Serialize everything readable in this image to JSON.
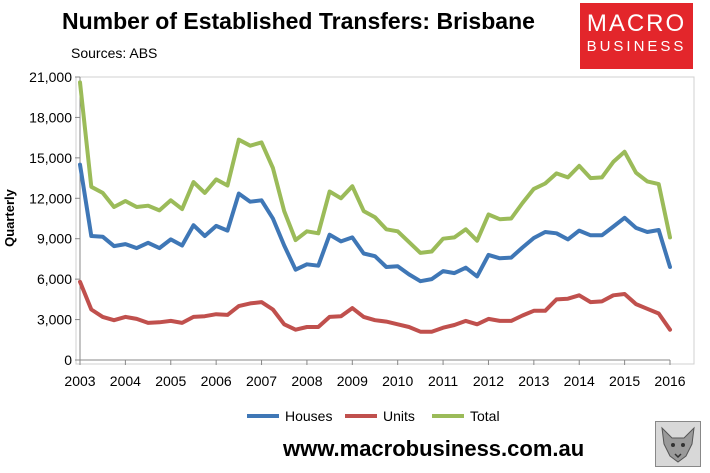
{
  "header": {
    "title": "Number of Established Transfers: Brisbane",
    "source": "Sources: ABS"
  },
  "logo": {
    "line1": "MACRO",
    "line2": "BUSINESS"
  },
  "footer": {
    "website": "www.macrobusiness.com.au",
    "mascot_icon": "wolf-icon"
  },
  "colors": {
    "houses": "#3f77b6",
    "units": "#c0504d",
    "total": "#9bbb59"
  },
  "chart_data": {
    "type": "line",
    "title": "Number of Established Transfers: Brisbane",
    "ylabel": "Quarterly",
    "xlabel": "",
    "xlim": [
      2003,
      2016
    ],
    "ylim": [
      0,
      21000
    ],
    "x_ticks": [
      "2003",
      "2004",
      "2005",
      "2006",
      "2007",
      "2008",
      "2009",
      "2010",
      "2011",
      "2012",
      "2013",
      "2014",
      "2015",
      "2016"
    ],
    "y_ticks": [
      "0",
      "3,000",
      "6,000",
      "9,000",
      "12,000",
      "15,000",
      "18,000",
      "21,000"
    ],
    "grid": false,
    "legend": "bottom",
    "x": [
      2003.0,
      2003.25,
      2003.5,
      2003.75,
      2004.0,
      2004.25,
      2004.5,
      2004.75,
      2005.0,
      2005.25,
      2005.5,
      2005.75,
      2006.0,
      2006.25,
      2006.5,
      2006.75,
      2007.0,
      2007.25,
      2007.5,
      2007.75,
      2008.0,
      2008.25,
      2008.5,
      2008.75,
      2009.0,
      2009.25,
      2009.5,
      2009.75,
      2010.0,
      2010.25,
      2010.5,
      2010.75,
      2011.0,
      2011.25,
      2011.5,
      2011.75,
      2012.0,
      2012.25,
      2012.5,
      2012.75,
      2013.0,
      2013.25,
      2013.5,
      2013.75,
      2014.0,
      2014.25,
      2014.5,
      2014.75,
      2015.0,
      2015.25,
      2015.5,
      2015.75,
      2016.0
    ],
    "series": [
      {
        "name": "Houses",
        "values": [
          14500,
          9200,
          9150,
          8450,
          8600,
          8300,
          8700,
          8300,
          8950,
          8500,
          10000,
          9200,
          9950,
          9600,
          12350,
          11750,
          11850,
          10500,
          8500,
          6700,
          7100,
          7000,
          9300,
          8800,
          9100,
          7900,
          7700,
          6900,
          6950,
          6350,
          5850,
          6000,
          6600,
          6450,
          6850,
          6200,
          7800,
          7550,
          7600,
          8350,
          9050,
          9500,
          9400,
          8950,
          9600,
          9250,
          9250,
          9900,
          10550,
          9800,
          9500,
          9650,
          6900
        ]
      },
      {
        "name": "Units",
        "values": [
          5800,
          3750,
          3200,
          2950,
          3200,
          3050,
          2750,
          2800,
          2900,
          2750,
          3200,
          3250,
          3400,
          3350,
          4000,
          4200,
          4300,
          3750,
          2650,
          2250,
          2450,
          2450,
          3200,
          3250,
          3850,
          3200,
          2950,
          2850,
          2650,
          2450,
          2100,
          2100,
          2400,
          2600,
          2900,
          2650,
          3050,
          2900,
          2900,
          3300,
          3650,
          3650,
          4500,
          4550,
          4800,
          4300,
          4350,
          4800,
          4900,
          4150,
          3800,
          3450,
          2250
        ]
      },
      {
        "name": "Total",
        "values": [
          20600,
          12850,
          12400,
          11350,
          11800,
          11350,
          11450,
          11100,
          11850,
          11200,
          13200,
          12400,
          13400,
          12950,
          16350,
          15900,
          16150,
          14250,
          11050,
          8900,
          9550,
          9400,
          12500,
          12000,
          12900,
          11050,
          10600,
          9700,
          9550,
          8750,
          7950,
          8050,
          9000,
          9100,
          9700,
          8850,
          10800,
          10450,
          10500,
          11650,
          12700,
          13100,
          13850,
          13550,
          14400,
          13500,
          13550,
          14700,
          15450,
          13900,
          13250,
          13050,
          9100
        ]
      }
    ]
  }
}
